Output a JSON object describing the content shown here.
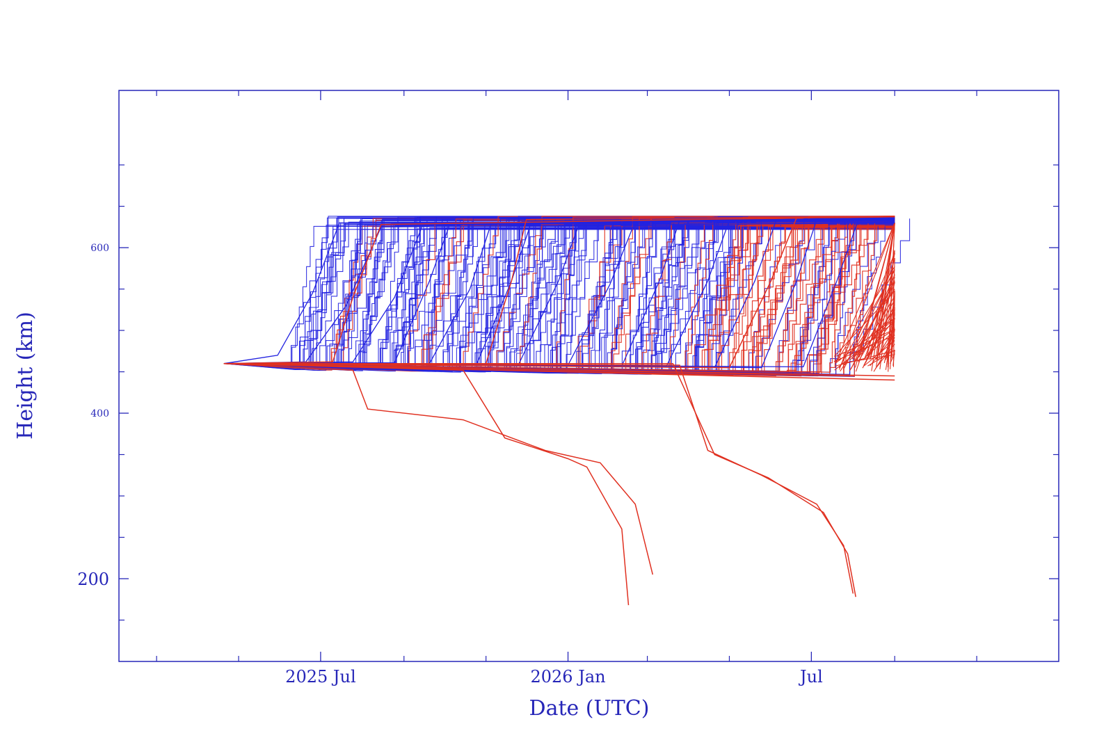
{
  "chart_data": {
    "type": "line",
    "title": "",
    "xlabel": "Date (UTC)",
    "ylabel": "Height (km)",
    "x_axis": "date",
    "xlim": [
      "2025-02-01",
      "2027-01-01"
    ],
    "ylim": [
      100,
      790
    ],
    "x_major_ticks": [
      {
        "date": "2025-07-01",
        "label": "2025 Jul"
      },
      {
        "date": "2026-01-01",
        "label": "2026 Jan"
      },
      {
        "date": "2026-07-01",
        "label": "Jul"
      }
    ],
    "x_minor_ticks": [
      "2025-03-01",
      "2025-05-01",
      "2025-09-01",
      "2025-11-01",
      "2026-03-01",
      "2026-05-01",
      "2026-09-01",
      "2026-11-01"
    ],
    "y_major_ticks": [
      200,
      400,
      600
    ],
    "y_minor_ticks": [
      150,
      250,
      300,
      350,
      450,
      500,
      550,
      650,
      700
    ],
    "grid": false,
    "legend": "none",
    "colors": {
      "axis": "#2626b8",
      "series_blue": "#2222e0",
      "series_red": "#e03020"
    },
    "series": [
      {
        "color": "blue",
        "points": [
          [
            "2025-04-20",
            460
          ],
          [
            "2025-05-30",
            470
          ],
          [
            "2025-06-25",
            545
          ],
          [
            "2025-07-15",
            630
          ],
          [
            "2026-09-01",
            632
          ]
        ]
      },
      {
        "color": "blue",
        "points": [
          [
            "2025-04-20",
            460
          ],
          [
            "2025-06-20",
            462
          ],
          [
            "2025-07-20",
            530
          ],
          [
            "2025-08-15",
            625
          ],
          [
            "2026-09-01",
            630
          ]
        ]
      },
      {
        "color": "blue",
        "points": [
          [
            "2025-04-20",
            460
          ],
          [
            "2025-07-25",
            462
          ],
          [
            "2025-08-25",
            540
          ],
          [
            "2025-09-15",
            628
          ],
          [
            "2026-09-01",
            634
          ]
        ]
      },
      {
        "color": "blue",
        "points": [
          [
            "2025-04-20",
            460
          ],
          [
            "2025-08-25",
            461
          ],
          [
            "2025-09-20",
            560
          ],
          [
            "2025-10-05",
            628
          ],
          [
            "2026-09-01",
            631
          ]
        ]
      },
      {
        "color": "blue",
        "points": [
          [
            "2025-04-20",
            460
          ],
          [
            "2025-09-20",
            460
          ],
          [
            "2025-10-20",
            550
          ],
          [
            "2025-11-05",
            630
          ],
          [
            "2026-09-01",
            633
          ]
        ]
      },
      {
        "color": "blue",
        "points": [
          [
            "2025-04-20",
            460
          ],
          [
            "2025-10-25",
            459
          ],
          [
            "2025-11-20",
            560
          ],
          [
            "2025-12-05",
            632
          ],
          [
            "2026-09-01",
            634
          ]
        ]
      },
      {
        "color": "blue",
        "points": [
          [
            "2025-04-20",
            460
          ],
          [
            "2025-11-25",
            458
          ],
          [
            "2025-12-25",
            560
          ],
          [
            "2026-01-10",
            632
          ],
          [
            "2026-09-01",
            635
          ]
        ]
      },
      {
        "color": "blue",
        "points": [
          [
            "2025-04-20",
            460
          ],
          [
            "2026-01-01",
            458
          ],
          [
            "2026-02-01",
            555
          ],
          [
            "2026-02-20",
            632
          ],
          [
            "2026-09-01",
            634
          ]
        ]
      },
      {
        "color": "blue",
        "points": [
          [
            "2025-04-20",
            460
          ],
          [
            "2026-02-10",
            457
          ],
          [
            "2026-03-10",
            560
          ],
          [
            "2026-03-25",
            633
          ],
          [
            "2026-09-01",
            635
          ]
        ]
      },
      {
        "color": "blue",
        "points": [
          [
            "2025-04-20",
            460
          ],
          [
            "2026-03-15",
            456
          ],
          [
            "2026-04-15",
            560
          ],
          [
            "2026-05-01",
            633
          ],
          [
            "2026-09-01",
            635
          ]
        ]
      },
      {
        "color": "blue",
        "points": [
          [
            "2025-04-20",
            460
          ],
          [
            "2026-04-20",
            455
          ],
          [
            "2026-05-20",
            560
          ],
          [
            "2026-06-05",
            634
          ],
          [
            "2026-09-01",
            636
          ]
        ]
      },
      {
        "color": "blue",
        "points": [
          [
            "2025-04-20",
            460
          ],
          [
            "2026-05-25",
            455
          ],
          [
            "2026-06-20",
            560
          ],
          [
            "2026-07-05",
            634
          ],
          [
            "2026-09-01",
            636
          ]
        ]
      },
      {
        "color": "blue",
        "points": [
          [
            "2025-04-20",
            460
          ],
          [
            "2026-06-25",
            456
          ],
          [
            "2026-07-20",
            560
          ],
          [
            "2026-08-05",
            634
          ],
          [
            "2026-09-01",
            636
          ]
        ]
      },
      {
        "color": "red",
        "points": [
          [
            "2025-04-20",
            460
          ],
          [
            "2025-07-25",
            452
          ],
          [
            "2025-08-05",
            405
          ],
          [
            "2025-10-15",
            392
          ],
          [
            "2025-12-15",
            355
          ],
          [
            "2026-01-25",
            340
          ],
          [
            "2026-02-20",
            290
          ],
          [
            "2026-03-05",
            205
          ]
        ]
      },
      {
        "color": "red",
        "points": [
          [
            "2025-04-20",
            460
          ],
          [
            "2025-10-15",
            452
          ],
          [
            "2025-11-15",
            370
          ],
          [
            "2026-01-01",
            345
          ],
          [
            "2026-01-15",
            335
          ],
          [
            "2026-02-10",
            260
          ],
          [
            "2026-02-15",
            168
          ]
        ]
      },
      {
        "color": "red",
        "points": [
          [
            "2025-04-20",
            460
          ],
          [
            "2026-03-25",
            458
          ],
          [
            "2026-04-15",
            355
          ],
          [
            "2026-05-25",
            325
          ],
          [
            "2026-07-05",
            290
          ],
          [
            "2026-07-25",
            240
          ],
          [
            "2026-08-01",
            182
          ]
        ]
      },
      {
        "color": "red",
        "points": [
          [
            "2025-04-20",
            460
          ],
          [
            "2026-03-20",
            460
          ],
          [
            "2026-04-20",
            350
          ],
          [
            "2026-05-30",
            322
          ],
          [
            "2026-07-10",
            280
          ],
          [
            "2026-07-28",
            230
          ],
          [
            "2026-08-03",
            178
          ]
        ]
      },
      {
        "color": "red",
        "points": [
          [
            "2025-04-20",
            460
          ],
          [
            "2025-07-10",
            462
          ],
          [
            "2025-07-25",
            540
          ],
          [
            "2025-08-15",
            628
          ],
          [
            "2026-09-01",
            638
          ]
        ]
      },
      {
        "color": "red",
        "points": [
          [
            "2025-04-20",
            460
          ],
          [
            "2025-11-01",
            460
          ],
          [
            "2025-11-20",
            560
          ],
          [
            "2025-12-01",
            634
          ],
          [
            "2026-09-01",
            638
          ]
        ]
      },
      {
        "color": "red",
        "points": [
          [
            "2025-04-20",
            460
          ],
          [
            "2026-05-01",
            455
          ],
          [
            "2026-06-01",
            560
          ],
          [
            "2026-06-20",
            636
          ],
          [
            "2026-09-01",
            638
          ]
        ]
      },
      {
        "color": "red",
        "points": [
          [
            "2025-04-20",
            460
          ],
          [
            "2026-09-01",
            440
          ]
        ]
      },
      {
        "color": "red",
        "points": [
          [
            "2025-04-20",
            460
          ],
          [
            "2026-09-01",
            445
          ]
        ]
      }
    ]
  }
}
